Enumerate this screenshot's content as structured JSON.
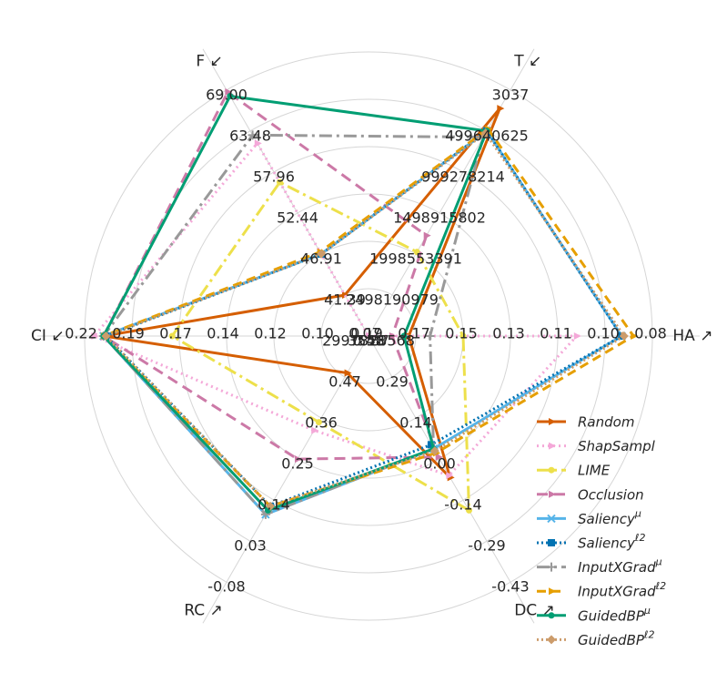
{
  "chart_data": {
    "type": "radar",
    "axes": [
      {
        "label": "T ↙",
        "ticks": [
          "3037",
          "499640625",
          "999278214",
          "1498915802",
          "1998553391",
          "2498190979",
          "2997828568"
        ]
      },
      {
        "label": "HA ↗",
        "ticks": [
          "0.08",
          "0.10",
          "0.11",
          "0.13",
          "0.15",
          "0.17",
          "0.19"
        ]
      },
      {
        "label": "DC ↗",
        "ticks": [
          "-0.43",
          "-0.29",
          "-0.14",
          "0.00",
          "0.14",
          "0.29",
          "0.43"
        ]
      },
      {
        "label": "RC ↗",
        "ticks": [
          "-0.08",
          "0.03",
          "0.14",
          "0.25",
          "0.36",
          "0.47",
          "0.58"
        ]
      },
      {
        "label": "CI ↙",
        "ticks": [
          "0.22",
          "0.19",
          "0.17",
          "0.14",
          "0.12",
          "0.10",
          "0.07"
        ]
      },
      {
        "label": "F ↙",
        "ticks": [
          "69.00",
          "63.48",
          "57.96",
          "52.44",
          "46.91",
          "41.39",
          "35.87"
        ]
      }
    ],
    "rlim": [
      0,
      6
    ],
    "legend_position": "lower-right",
    "series": [
      {
        "name": "Random",
        "color": "#d55e00",
        "dash": "",
        "marker": "tri",
        "values": [
          5.55,
          0.85,
          3.45,
          0.9,
          5.6,
          1.0
        ]
      },
      {
        "name": "ShapSampl",
        "color": "#f4a8d8",
        "dash": "2,4",
        "marker": "tri",
        "values": [
          0.0,
          4.4,
          3.4,
          2.3,
          5.8,
          4.7
        ]
      },
      {
        "name": "LIME",
        "color": "#ede04b",
        "dash": "14,5,3,5",
        "marker": "dot",
        "values": [
          2.05,
          2.0,
          4.25,
          2.1,
          4.15,
          3.75
        ]
      },
      {
        "name": "Occlusion",
        "color": "#cc79a7",
        "dash": "12,7",
        "marker": "tri",
        "values": [
          2.45,
          0.5,
          2.95,
          3.0,
          5.6,
          5.95
        ]
      },
      {
        "name": "Saliency^μ",
        "color": "#56b4e9",
        "dash": "",
        "marker": "x",
        "values": [
          5.0,
          5.35,
          2.75,
          4.35,
          5.6,
          2.0
        ]
      },
      {
        "name": "Saliency^ℓ2",
        "color": "#0072b2",
        "dash": "2,3",
        "marker": "sq",
        "values": [
          5.0,
          5.35,
          2.65,
          4.15,
          5.55,
          2.0
        ]
      },
      {
        "name": "InputXGrad^μ",
        "color": "#999999",
        "dash": "14,5,3,5",
        "marker": "plus",
        "values": [
          4.85,
          1.3,
          2.75,
          4.35,
          5.6,
          4.9
        ]
      },
      {
        "name": "InputXGrad^ℓ2",
        "color": "#e69f00",
        "dash": "10,6",
        "marker": "tri",
        "values": [
          5.05,
          5.6,
          2.85,
          4.15,
          5.6,
          2.05
        ]
      },
      {
        "name": "GuidedBP^μ",
        "color": "#009e73",
        "dash": "",
        "marker": "dot",
        "values": [
          5.0,
          0.75,
          2.75,
          4.25,
          5.6,
          5.85
        ]
      },
      {
        "name": "GuidedBP^ℓ2",
        "color": "#cc9c6b",
        "dash": "2,3",
        "marker": "diamond",
        "values": [
          4.95,
          5.4,
          2.8,
          4.15,
          5.55,
          2.0
        ]
      }
    ]
  }
}
